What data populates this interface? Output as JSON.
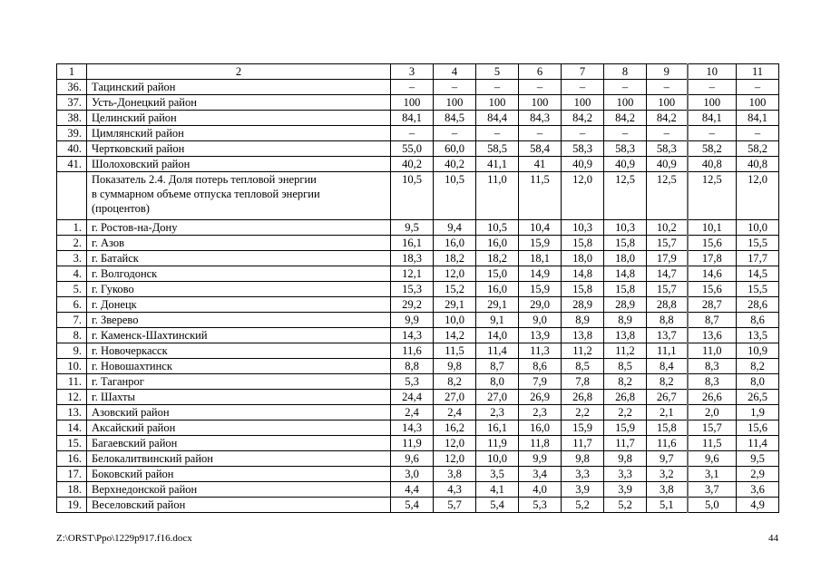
{
  "footer": {
    "file_path": "Z:\\ORST\\Ppo\\1229p917.f16.docx",
    "page_number": "44"
  },
  "table": {
    "header": [
      "1",
      "2",
      "3",
      "4",
      "5",
      "6",
      "7",
      "8",
      "9",
      "10",
      "11"
    ],
    "rows": [
      {
        "num": "36.",
        "name": "Тацинский район",
        "values": [
          "–",
          "–",
          "–",
          "–",
          "–",
          "–",
          "–",
          "–",
          "–"
        ]
      },
      {
        "num": "37.",
        "name": "Усть-Донецкий район",
        "values": [
          "100",
          "100",
          "100",
          "100",
          "100",
          "100",
          "100",
          "100",
          "100"
        ]
      },
      {
        "num": "38.",
        "name": "Целинский район",
        "values": [
          "84,1",
          "84,5",
          "84,4",
          "84,3",
          "84,2",
          "84,2",
          "84,2",
          "84,1",
          "84,1"
        ]
      },
      {
        "num": "39.",
        "name": "Цимлянский район",
        "values": [
          "–",
          "–",
          "–",
          "–",
          "–",
          "–",
          "–",
          "–",
          "–"
        ]
      },
      {
        "num": "40.",
        "name": "Чертковский район",
        "values": [
          "55,0",
          "60,0",
          "58,5",
          "58,4",
          "58,3",
          "58,3",
          "58,3",
          "58,2",
          "58,2"
        ]
      },
      {
        "num": "41.",
        "name": "Шолоховский район",
        "values": [
          "40,2",
          "40,2",
          "41,1",
          "41",
          "40,9",
          "40,9",
          "40,9",
          "40,8",
          "40,8"
        ]
      },
      {
        "num": "",
        "section": true,
        "name": "Показатель 2.4. Доля потерь тепловой энергии\nв суммарном объеме отпуска тепловой энергии\n(процентов)",
        "values": [
          "10,5",
          "10,5",
          "11,0",
          "11,5",
          "12,0",
          "12,5",
          "12,5",
          "12,5",
          "12,0"
        ]
      },
      {
        "num": "1.",
        "name": "г. Ростов-на-Дону",
        "values": [
          "9,5",
          "9,4",
          "10,5",
          "10,4",
          "10,3",
          "10,3",
          "10,2",
          "10,1",
          "10,0"
        ]
      },
      {
        "num": "2.",
        "name": "г. Азов",
        "values": [
          "16,1",
          "16,0",
          "16,0",
          "15,9",
          "15,8",
          "15,8",
          "15,7",
          "15,6",
          "15,5"
        ]
      },
      {
        "num": "3.",
        "name": "г. Батайск",
        "values": [
          "18,3",
          "18,2",
          "18,2",
          "18,1",
          "18,0",
          "18,0",
          "17,9",
          "17,8",
          "17,7"
        ]
      },
      {
        "num": "4.",
        "name": "г. Волгодонск",
        "values": [
          "12,1",
          "12,0",
          "15,0",
          "14,9",
          "14,8",
          "14,8",
          "14,7",
          "14,6",
          "14,5"
        ]
      },
      {
        "num": "5.",
        "name": "г. Гуково",
        "values": [
          "15,3",
          "15,2",
          "16,0",
          "15,9",
          "15,8",
          "15,8",
          "15,7",
          "15,6",
          "15,5"
        ]
      },
      {
        "num": "6.",
        "name": "г. Донецк",
        "values": [
          "29,2",
          "29,1",
          "29,1",
          "29,0",
          "28,9",
          "28,9",
          "28,8",
          "28,7",
          "28,6"
        ]
      },
      {
        "num": "7.",
        "name": "г. Зверево",
        "values": [
          "9,9",
          "10,0",
          "9,1",
          "9,0",
          "8,9",
          "8,9",
          "8,8",
          "8,7",
          "8,6"
        ]
      },
      {
        "num": "8.",
        "name": "г. Каменск-Шахтинский",
        "values": [
          "14,3",
          "14,2",
          "14,0",
          "13,9",
          "13,8",
          "13,8",
          "13,7",
          "13,6",
          "13,5"
        ]
      },
      {
        "num": "9.",
        "name": "г. Новочеркасск",
        "values": [
          "11,6",
          "11,5",
          "11,4",
          "11,3",
          "11,2",
          "11,2",
          "11,1",
          "11,0",
          "10,9"
        ]
      },
      {
        "num": "10.",
        "name": "г. Новошахтинск",
        "values": [
          "8,8",
          "9,8",
          "8,7",
          "8,6",
          "8,5",
          "8,5",
          "8,4",
          "8,3",
          "8,2"
        ]
      },
      {
        "num": "11.",
        "name": "г. Таганрог",
        "values": [
          "5,3",
          "8,2",
          "8,0",
          "7,9",
          "7,8",
          "8,2",
          "8,2",
          "8,3",
          "8,0"
        ]
      },
      {
        "num": "12.",
        "name": "г. Шахты",
        "values": [
          "24,4",
          "27,0",
          "27,0",
          "26,9",
          "26,8",
          "26,8",
          "26,7",
          "26,6",
          "26,5"
        ]
      },
      {
        "num": "13.",
        "name": "Азовский район",
        "values": [
          "2,4",
          "2,4",
          "2,3",
          "2,3",
          "2,2",
          "2,2",
          "2,1",
          "2,0",
          "1,9"
        ]
      },
      {
        "num": "14.",
        "name": "Аксайский район",
        "values": [
          "14,3",
          "16,2",
          "16,1",
          "16,0",
          "15,9",
          "15,9",
          "15,8",
          "15,7",
          "15,6"
        ]
      },
      {
        "num": "15.",
        "name": "Багаевский район",
        "values": [
          "11,9",
          "12,0",
          "11,9",
          "11,8",
          "11,7",
          "11,7",
          "11,6",
          "11,5",
          "11,4"
        ]
      },
      {
        "num": "16.",
        "name": "Белокалитвинский район",
        "values": [
          "9,6",
          "12,0",
          "10,0",
          "9,9",
          "9,8",
          "9,8",
          "9,7",
          "9,6",
          "9,5"
        ]
      },
      {
        "num": "17.",
        "name": "Боковский район",
        "values": [
          "3,0",
          "3,8",
          "3,5",
          "3,4",
          "3,3",
          "3,3",
          "3,2",
          "3,1",
          "2,9"
        ]
      },
      {
        "num": "18.",
        "name": "Верхнедонской район",
        "values": [
          "4,4",
          "4,3",
          "4,1",
          "4,0",
          "3,9",
          "3,9",
          "3,8",
          "3,7",
          "3,6"
        ]
      },
      {
        "num": "19.",
        "name": "Веселовский район",
        "values": [
          "5,4",
          "5,7",
          "5,4",
          "5,3",
          "5,2",
          "5,2",
          "5,1",
          "5,0",
          "4,9"
        ]
      }
    ]
  }
}
